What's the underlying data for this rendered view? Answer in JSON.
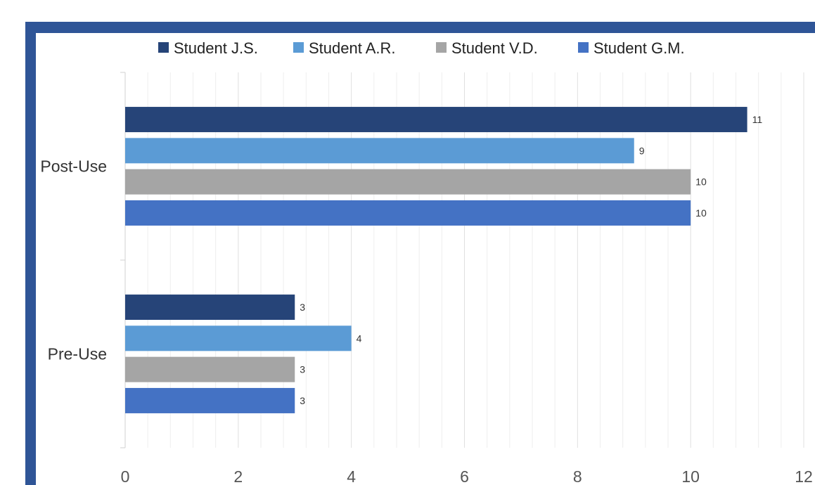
{
  "chart_data": {
    "type": "bar",
    "orientation": "horizontal",
    "categories": [
      "Post-Use",
      "Pre-Use"
    ],
    "series": [
      {
        "name": "Student J.S.",
        "color": "#264478",
        "values": [
          11,
          3
        ]
      },
      {
        "name": "Student A.R.",
        "color": "#5b9bd5",
        "values": [
          9,
          4
        ]
      },
      {
        "name": "Student V.D.",
        "color": "#a5a5a5",
        "values": [
          10,
          3
        ]
      },
      {
        "name": "Student G.M.",
        "color": "#4472c4",
        "values": [
          10,
          3
        ]
      }
    ],
    "xlim": [
      0,
      12
    ],
    "xticks": [
      "0",
      "2",
      "4",
      "6",
      "8",
      "10",
      "12"
    ],
    "grid": true,
    "legend_position": "top",
    "data_labels": true
  },
  "frame_color": "#2f5597"
}
